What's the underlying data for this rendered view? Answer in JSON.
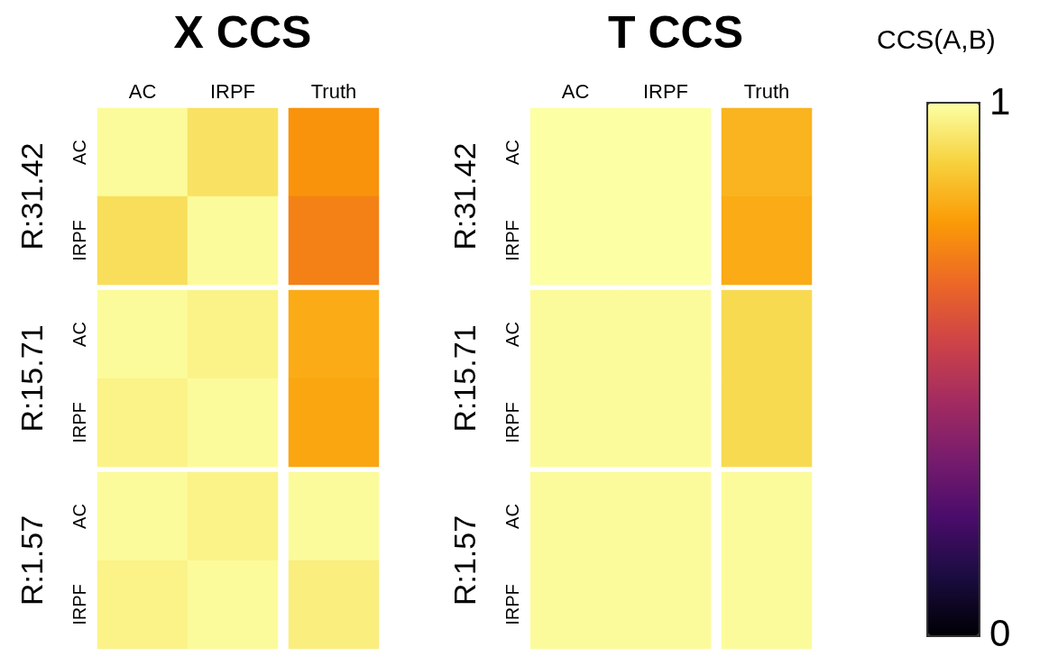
{
  "chart_data": {
    "type": "heatmap",
    "categories": [
      "AC",
      "IRPF",
      "Truth",
      "AC",
      "IRPF",
      "Truth"
    ],
    "y_categories": [
      "AC",
      "IRPF",
      "AC",
      "IRPF",
      "AC",
      "IRPF"
    ],
    "cells": [
      [
        0.99,
        0.93,
        0.76,
        1,
        1,
        0.83
      ],
      [
        0.92,
        0.99,
        0.72,
        1,
        1,
        0.81
      ],
      [
        0.99,
        0.97,
        0.81,
        0.99,
        0.99,
        0.91
      ],
      [
        0.97,
        0.99,
        0.8,
        0.99,
        0.99,
        0.91
      ],
      [
        0.99,
        0.97,
        0.99,
        0.99,
        0.99,
        0.99
      ],
      [
        0.97,
        0.99,
        0.96,
        0.99,
        0.99,
        0.99
      ]
    ],
    "annotations": [
      "X CCS",
      "R:31.42",
      "R:15.71",
      "R:1.57",
      "T CCS",
      "R:31.42",
      "R:15.71",
      "R:1.57"
    ],
    "clim": [
      0,
      1
    ],
    "cticks": [
      0,
      1
    ],
    "clabel": "CCS(A,B)"
  }
}
